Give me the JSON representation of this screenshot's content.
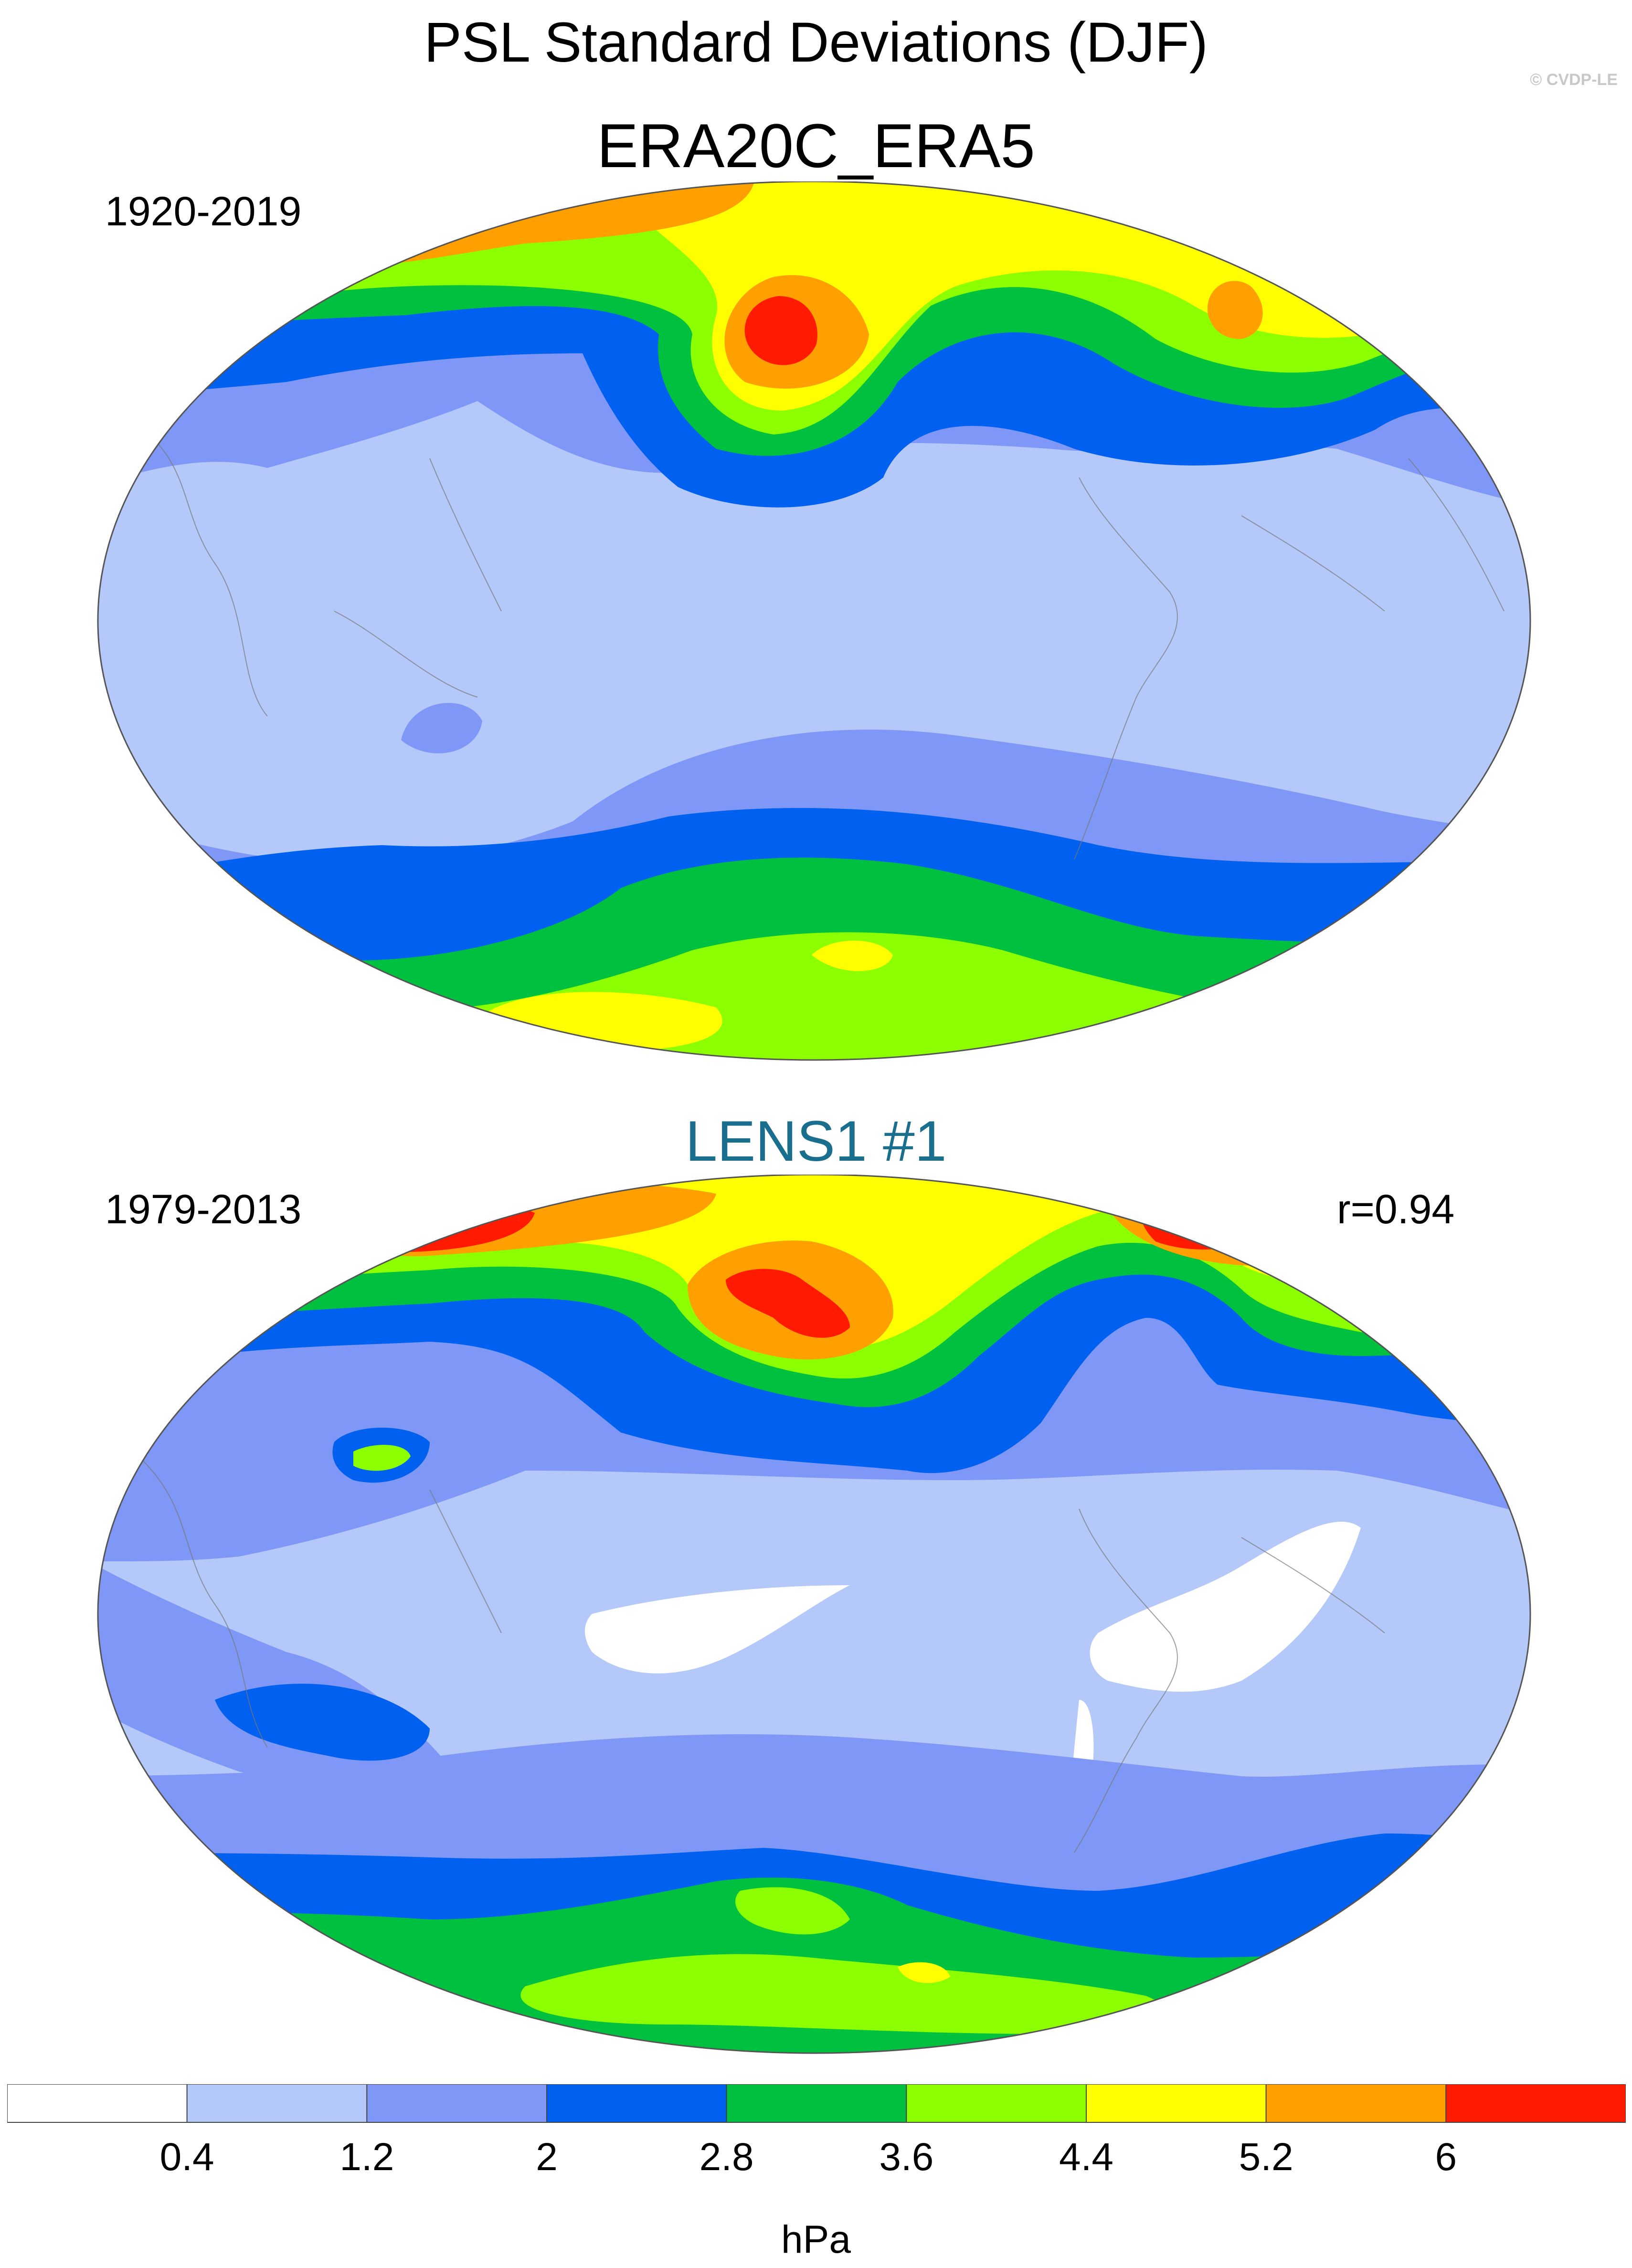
{
  "title": "PSL Standard Deviations (DJF)",
  "watermark": "© CVDP-LE",
  "panels": [
    {
      "title": "ERA20C_ERA5",
      "title_color": "#000000",
      "period": "1920-2019",
      "correlation": ""
    },
    {
      "title": "LENS1 #1",
      "title_color": "#1a6e8e",
      "period": "1979-2013",
      "correlation": "r=0.94"
    }
  ],
  "colorbar": {
    "unit": "hPa",
    "levels": [
      "0.4",
      "1.2",
      "2",
      "2.8",
      "3.6",
      "4.4",
      "5.2",
      "6"
    ],
    "colors": [
      "#ffffff",
      "#b4c8fa",
      "#7f98f8",
      "#0060f0",
      "#00c040",
      "#8cff00",
      "#ffff00",
      "#ffa000",
      "#ff1a00"
    ]
  }
}
